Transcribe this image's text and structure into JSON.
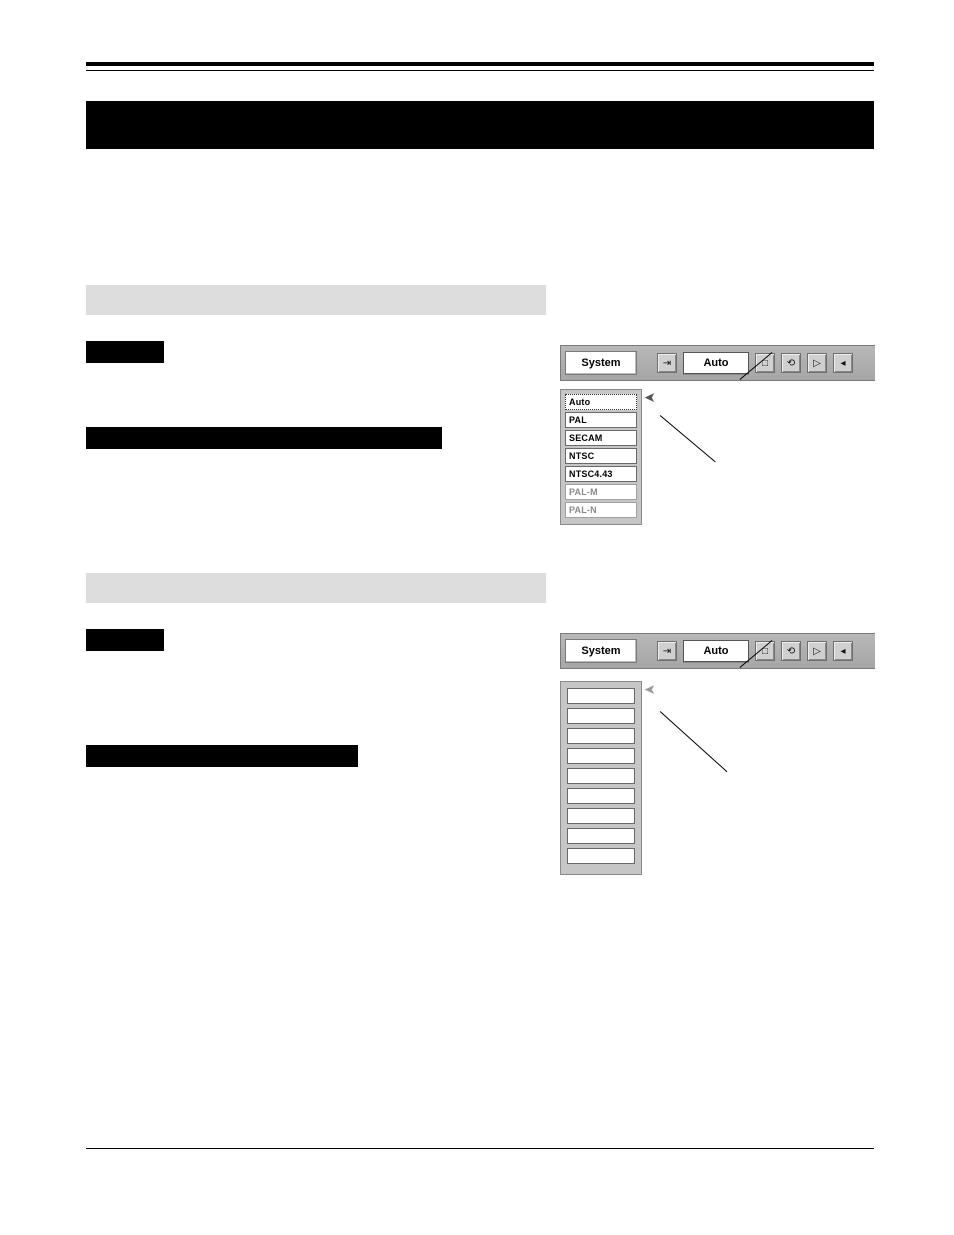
{
  "colors": {
    "page_bg": "#ffffff",
    "black": "#000000",
    "gray_strip": "#dddddd",
    "toolbar_bg_top": "#b8b8b8",
    "toolbar_bg_bottom": "#a6a6a6",
    "toolbar_border": "#7a7a7a",
    "button_bg": "#ffffff",
    "button_border": "#6f6f6f",
    "icon_btn_bg": "#d0d0d0",
    "dropdown_bg": "#c6c6c6",
    "dropdown_border": "#8a8a8a",
    "dim_text": "#8a8a8a"
  },
  "widget1": {
    "system_label": "System",
    "value_label": "Auto",
    "icons": [
      "⇥",
      "□",
      "⟲",
      "▷",
      "◂"
    ],
    "items": [
      {
        "label": "Auto",
        "state": "highlight"
      },
      {
        "label": "PAL",
        "state": "normal"
      },
      {
        "label": "SECAM",
        "state": "normal"
      },
      {
        "label": "NTSC",
        "state": "normal"
      },
      {
        "label": "NTSC4.43",
        "state": "normal"
      },
      {
        "label": "PAL-M",
        "state": "dim"
      },
      {
        "label": "PAL-N",
        "state": "dim"
      }
    ]
  },
  "widget2": {
    "system_label": "System",
    "value_label": "Auto",
    "icons": [
      "⇥",
      "□",
      "⟲",
      "▷",
      "◂"
    ],
    "items": [
      {
        "label": "",
        "state": "normal"
      },
      {
        "label": "",
        "state": "normal"
      },
      {
        "label": "",
        "state": "normal"
      },
      {
        "label": "",
        "state": "normal"
      },
      {
        "label": "",
        "state": "normal"
      },
      {
        "label": "",
        "state": "normal"
      },
      {
        "label": "",
        "state": "normal"
      },
      {
        "label": "",
        "state": "normal"
      },
      {
        "label": "",
        "state": "normal"
      }
    ]
  }
}
